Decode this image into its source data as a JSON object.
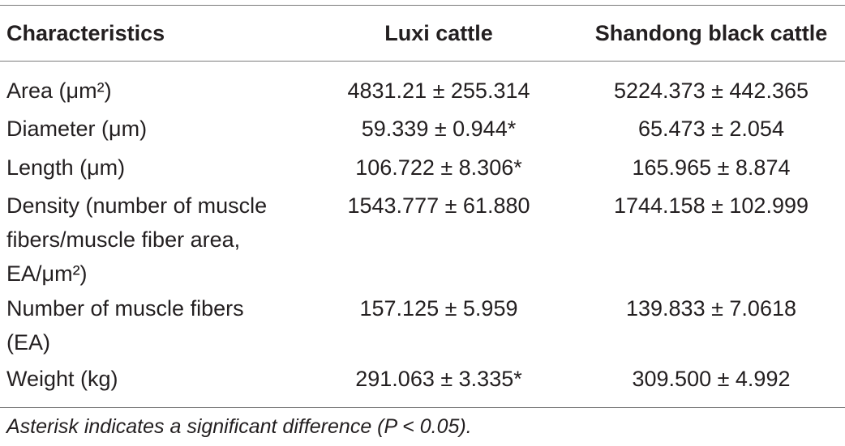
{
  "table": {
    "headers": [
      "Characteristics",
      "Luxi cattle",
      "Shandong black cattle"
    ],
    "rows": [
      {
        "label_lines": [
          "Area (μm²)"
        ],
        "luxi": "4831.21 ± 255.314",
        "shandong": "5224.373 ± 442.365"
      },
      {
        "label_lines": [
          "Diameter (μm)"
        ],
        "luxi": "59.339 ± 0.944*",
        "shandong": "65.473 ± 2.054"
      },
      {
        "label_lines": [
          "Length (μm)"
        ],
        "luxi": "106.722 ± 8.306*",
        "shandong": "165.965 ± 8.874"
      },
      {
        "label_lines": [
          "Density (number of muscle",
          "fibers/muscle fiber area,",
          "EA/μm²)"
        ],
        "luxi": "1543.777 ± 61.880",
        "shandong": "1744.158 ± 102.999"
      },
      {
        "label_lines": [
          "Number of muscle fibers",
          "(EA)"
        ],
        "luxi": "157.125 ± 5.959",
        "shandong": "139.833 ± 7.0618"
      },
      {
        "label_lines": [
          "Weight (kg)"
        ],
        "luxi": "291.063 ± 3.335*",
        "shandong": "309.500 ± 4.992"
      }
    ],
    "footnote": "Asterisk indicates a significant difference (P < 0.05)."
  }
}
